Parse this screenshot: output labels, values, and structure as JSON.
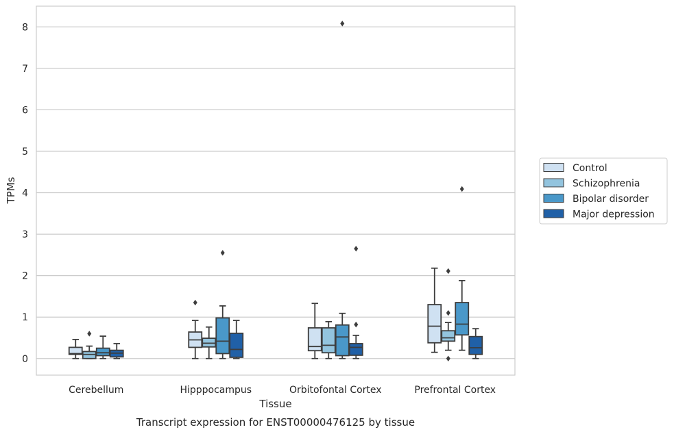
{
  "chart_data": {
    "type": "box",
    "xlabel": "Tissue",
    "ylabel": "TPMs",
    "caption": "Transcript expression for ENST00000476125 by tissue",
    "ylim": [
      -0.4,
      8.5
    ],
    "yticks": [
      0,
      1,
      2,
      3,
      4,
      5,
      6,
      7,
      8
    ],
    "grid": "horizontal",
    "legend_position": "right",
    "categories": [
      "Cerebellum",
      "Hipppocampus",
      "Orbitofontal Cortex",
      "Prefrontal Cortex"
    ],
    "series": [
      {
        "name": "Control",
        "color": "#cfe1f2",
        "boxes": [
          {
            "whislo": 0.0,
            "q1": 0.1,
            "med": 0.12,
            "q3": 0.27,
            "whishi": 0.46,
            "fliers": []
          },
          {
            "whislo": 0.0,
            "q1": 0.27,
            "med": 0.45,
            "q3": 0.64,
            "whishi": 0.92,
            "fliers": [
              1.35
            ]
          },
          {
            "whislo": 0.0,
            "q1": 0.19,
            "med": 0.29,
            "q3": 0.74,
            "whishi": 1.33,
            "fliers": []
          },
          {
            "whislo": 0.15,
            "q1": 0.38,
            "med": 0.78,
            "q3": 1.3,
            "whishi": 2.18,
            "fliers": []
          }
        ]
      },
      {
        "name": "Schizophrenia",
        "color": "#93c4de",
        "boxes": [
          {
            "whislo": 0.0,
            "q1": 0.0,
            "med": 0.1,
            "q3": 0.17,
            "whishi": 0.3,
            "fliers": [
              0.6
            ]
          },
          {
            "whislo": 0.0,
            "q1": 0.28,
            "med": 0.37,
            "q3": 0.49,
            "whishi": 0.76,
            "fliers": []
          },
          {
            "whislo": 0.0,
            "q1": 0.14,
            "med": 0.32,
            "q3": 0.74,
            "whishi": 0.89,
            "fliers": []
          },
          {
            "whislo": 0.2,
            "q1": 0.42,
            "med": 0.5,
            "q3": 0.67,
            "whishi": 0.87,
            "fliers": [
              1.1,
              2.11,
              0.0
            ]
          }
        ]
      },
      {
        "name": "Bipolar disorder",
        "color": "#4a98c9",
        "boxes": [
          {
            "whislo": 0.0,
            "q1": 0.07,
            "med": 0.14,
            "q3": 0.25,
            "whishi": 0.54,
            "fliers": []
          },
          {
            "whislo": 0.0,
            "q1": 0.12,
            "med": 0.42,
            "q3": 0.98,
            "whishi": 1.27,
            "fliers": [
              2.55
            ]
          },
          {
            "whislo": 0.0,
            "q1": 0.07,
            "med": 0.52,
            "q3": 0.81,
            "whishi": 1.09,
            "fliers": [
              8.08
            ]
          },
          {
            "whislo": 0.2,
            "q1": 0.57,
            "med": 0.83,
            "q3": 1.35,
            "whishi": 1.88,
            "fliers": [
              4.09
            ]
          }
        ]
      },
      {
        "name": "Major depression",
        "color": "#2060a7",
        "boxes": [
          {
            "whislo": 0.0,
            "q1": 0.04,
            "med": 0.13,
            "q3": 0.2,
            "whishi": 0.36,
            "fliers": []
          },
          {
            "whislo": 0.0,
            "q1": 0.03,
            "med": 0.22,
            "q3": 0.61,
            "whishi": 0.92,
            "fliers": []
          },
          {
            "whislo": 0.0,
            "q1": 0.08,
            "med": 0.27,
            "q3": 0.36,
            "whishi": 0.56,
            "fliers": [
              2.65,
              0.82
            ]
          },
          {
            "whislo": 0.0,
            "q1": 0.1,
            "med": 0.26,
            "q3": 0.53,
            "whishi": 0.72,
            "fliers": []
          }
        ]
      }
    ]
  }
}
